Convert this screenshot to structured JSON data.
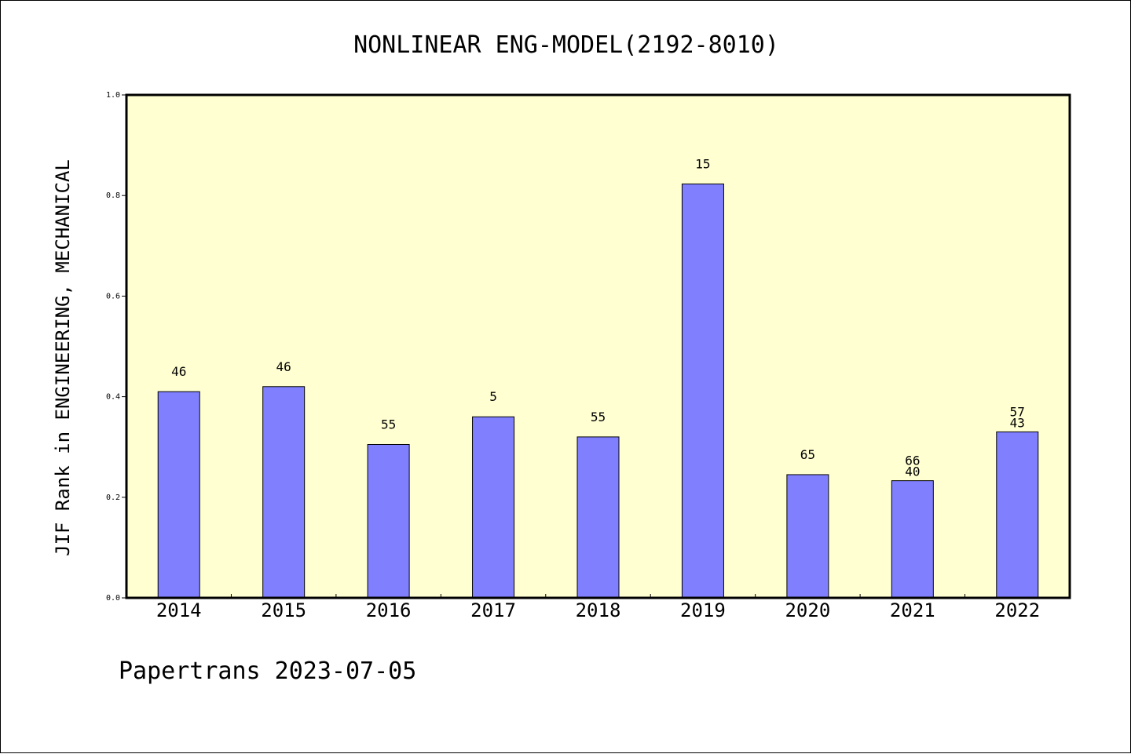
{
  "chart_data": {
    "type": "bar",
    "title": "NONLINEAR ENG-MODEL(2192-8010)",
    "ylabel": "JIF Rank in ENGINEERING, MECHANICAL",
    "xlabel": "",
    "ylim": [
      0,
      1.0
    ],
    "yticks": [
      "0.0",
      "0.2",
      "0.4",
      "0.6",
      "0.8",
      "1.0"
    ],
    "categories": [
      "2014",
      "2015",
      "2016",
      "2017",
      "2018",
      "2019",
      "2020",
      "2021",
      "2022"
    ],
    "values": [
      0.41,
      0.42,
      0.305,
      0.36,
      0.32,
      0.823,
      0.245,
      0.233,
      0.33
    ],
    "data_labels": [
      [
        "46"
      ],
      [
        "46"
      ],
      [
        "55"
      ],
      [
        "5"
      ],
      [
        "55"
      ],
      [
        "15"
      ],
      [
        "65"
      ],
      [
        "66",
        "40"
      ],
      [
        "57",
        "43"
      ]
    ],
    "colors": {
      "bar": "#8080ff",
      "plot_background": "#ffffd2",
      "axis": "#000000"
    },
    "grid": false,
    "legend": "none"
  },
  "footer": "Papertrans 2023-07-05"
}
